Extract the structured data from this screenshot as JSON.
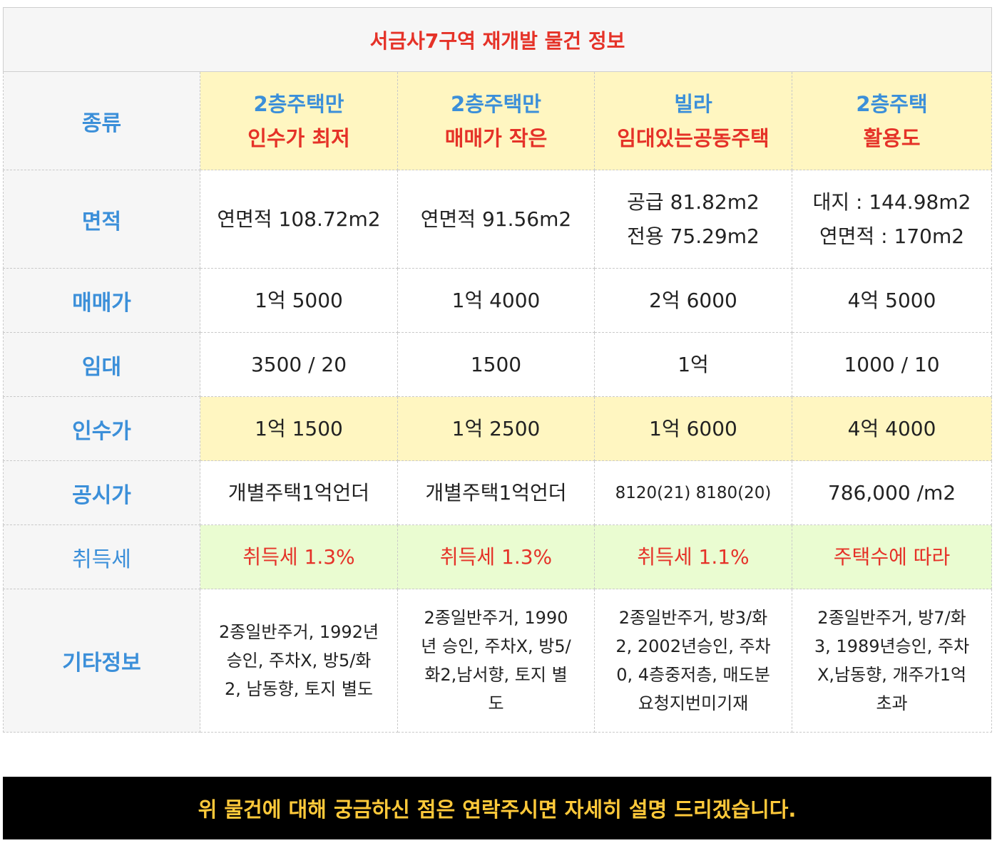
{
  "title": "서금사7구역 재개발 물건 정보",
  "rows": {
    "kind": {
      "label": "종류",
      "cols": [
        {
          "top": "2층주택만",
          "bottom": "인수가 최저"
        },
        {
          "top": "2층주택만",
          "bottom": "매매가 작은"
        },
        {
          "top": "빌라",
          "bottom": "임대있는공동주택"
        },
        {
          "top": "2층주택",
          "bottom": "활용도"
        }
      ]
    },
    "area": {
      "label": "면적",
      "cols": [
        {
          "l1": "연면적 108.72m2",
          "l2": ""
        },
        {
          "l1": "연면적 91.56m2",
          "l2": ""
        },
        {
          "l1": "공급 81.82m2",
          "l2": "전용 75.29m2"
        },
        {
          "l1": "대지 : 144.98m2",
          "l2": "연면적 : 170m2"
        }
      ]
    },
    "price": {
      "label": "매매가",
      "cols": [
        "1억 5000",
        "1억 4000",
        "2억 6000",
        "4억 5000"
      ]
    },
    "rent": {
      "label": "임대",
      "cols": [
        "3500 / 20",
        "1500",
        "1억",
        "1000 / 10"
      ]
    },
    "acq": {
      "label": "인수가",
      "cols": [
        "1억 1500",
        "1억 2500",
        "1억 6000",
        "4억 4000"
      ]
    },
    "official": {
      "label": "공시가",
      "cols": [
        "개별주택1억언더",
        "개별주택1억언더",
        "8120(21) 8180(20)",
        "786,000 /m2"
      ]
    },
    "tax": {
      "label": "취득세",
      "cols": [
        "취득세 1.3%",
        "취득세 1.3%",
        "취득세 1.1%",
        "주택수에 따라"
      ]
    },
    "etc": {
      "label": "기타정보",
      "cols": [
        [
          "2종일반주거, 1992년",
          "승인, 주차X, 방5/화",
          "2, 남동향, 토지 별도"
        ],
        [
          "2종일반주거, 1990",
          "년 승인, 주차X, 방5/",
          "화2,남서향, 토지 별",
          "도"
        ],
        [
          "2종일반주거, 방3/화",
          "2, 2002년승인, 주차",
          "0, 4층중저층, 매도분",
          "요청지번미기재"
        ],
        [
          "2종일반주거, 방7/화",
          "3, 1989년승인, 주차",
          "X,남동향, 개주가1억",
          "초과"
        ]
      ]
    }
  },
  "banner": "위 물건에 대해 궁금하신 점은 연락주시면 자세히 설명 드리겠습니다.",
  "colors": {
    "title_red": "#e53228",
    "label_blue": "#3b8fd9",
    "yellow_bg": "#fff6c1",
    "green_bg": "#eafcd1",
    "banner_text": "#ffc93a"
  }
}
